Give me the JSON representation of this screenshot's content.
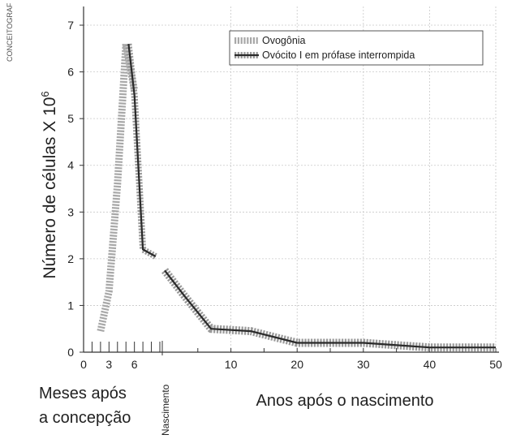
{
  "credit": "CONCEITOGRAF",
  "chart_data": {
    "type": "line",
    "title": "",
    "ylabel": "Número de células X 10",
    "ylabel_exponent": "6",
    "ylim": [
      0,
      7.4
    ],
    "yticks": [
      0,
      1,
      2,
      3,
      4,
      5,
      6,
      7
    ],
    "months_axis": {
      "label_line1": "Meses após",
      "label_line2": "a concepção",
      "ticks": [
        0,
        3,
        6
      ],
      "range": [
        0,
        9
      ]
    },
    "birth_label": "Nascimento",
    "years_axis": {
      "label": "Anos após o nascimento",
      "ticks": [
        10,
        20,
        30,
        40,
        50
      ],
      "range": [
        0,
        50
      ]
    },
    "legend_position": "top-right",
    "series": [
      {
        "name": "Ovogônia",
        "color": "#a8a8a8",
        "style": "dotted-band",
        "months_points": [
          [
            2,
            0.45
          ],
          [
            3,
            1.3
          ],
          [
            4,
            3.6
          ],
          [
            5,
            6.6
          ],
          [
            6,
            5.6
          ]
        ]
      },
      {
        "name": "Ovócito I em prófase interrompida",
        "color": "#2a2a2a",
        "halo_color": "#9a9a9a",
        "style": "solid-with-dotted-halo",
        "months_points": [
          [
            5.3,
            6.6
          ],
          [
            6,
            5.5
          ],
          [
            7,
            2.2
          ],
          [
            8.5,
            2.05
          ]
        ],
        "years_points": [
          [
            0,
            1.75
          ],
          [
            3,
            1.2
          ],
          [
            7,
            0.5
          ],
          [
            13,
            0.45
          ],
          [
            20,
            0.2
          ],
          [
            30,
            0.2
          ],
          [
            40,
            0.1
          ],
          [
            50,
            0.1
          ]
        ]
      }
    ]
  }
}
